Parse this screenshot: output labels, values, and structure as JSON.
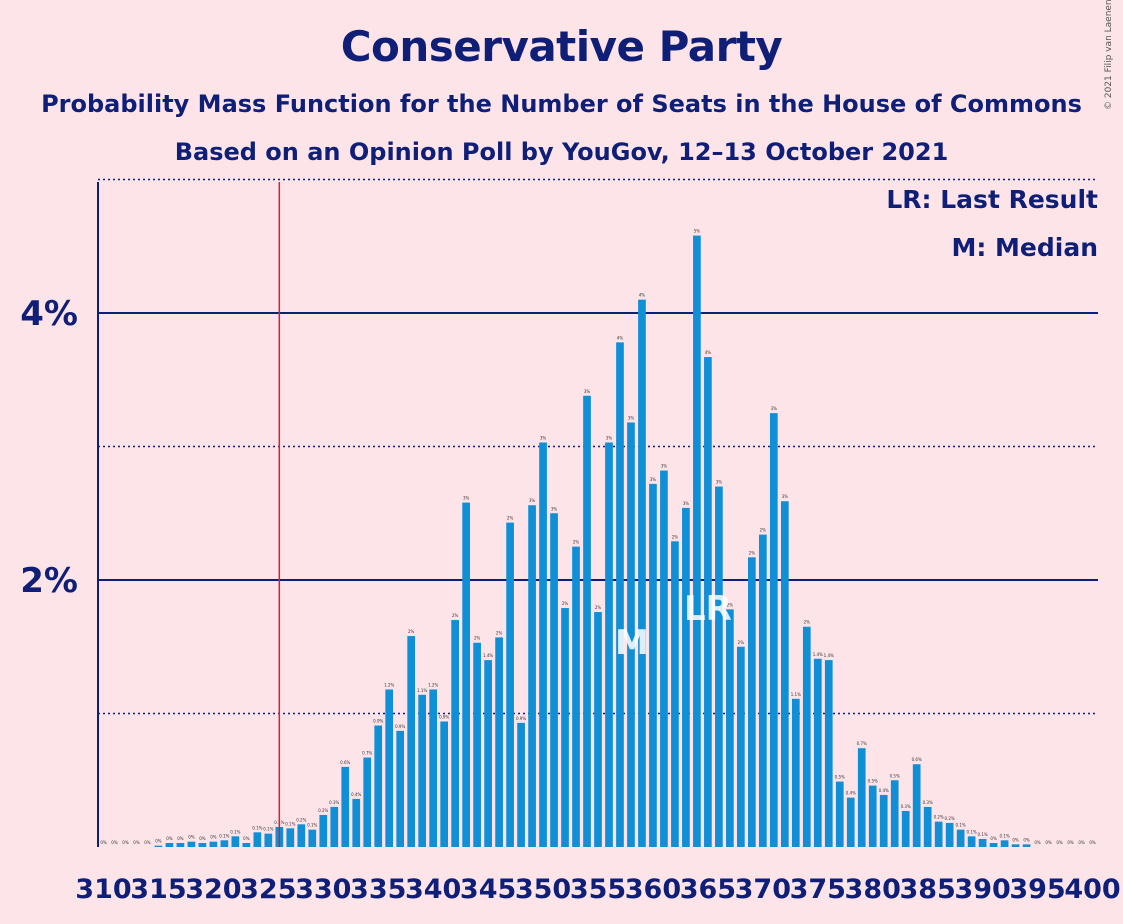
{
  "title": "Conservative Party",
  "subtitle1": "Probability Mass Function for the Number of Seats in the House of Commons",
  "subtitle2": "Based on an Opinion Poll by YouGov, 12–13 October 2021",
  "copyright": "© 2021 Filip van Laenen",
  "legend": {
    "lr": "LR: Last Result",
    "m": "M: Median"
  },
  "colors": {
    "bar": "#0f8fd6",
    "axis": "#0f1f78",
    "last_result_line": "#d0203a",
    "background": "#fde4e8"
  },
  "chart_data": {
    "type": "bar",
    "x": [
      310,
      311,
      312,
      313,
      314,
      315,
      316,
      317,
      318,
      319,
      320,
      321,
      322,
      323,
      324,
      325,
      326,
      327,
      328,
      329,
      330,
      331,
      332,
      333,
      334,
      335,
      336,
      337,
      338,
      339,
      340,
      341,
      342,
      343,
      344,
      345,
      346,
      347,
      348,
      349,
      350,
      351,
      352,
      353,
      354,
      355,
      356,
      357,
      358,
      359,
      360,
      361,
      362,
      363,
      364,
      365,
      366,
      367,
      368,
      369,
      370,
      371,
      372,
      373,
      374,
      375,
      376,
      377,
      378,
      379,
      380,
      381,
      382,
      383,
      384,
      385,
      386,
      387,
      388,
      389,
      390,
      391,
      392,
      393,
      394,
      395,
      396,
      397,
      398,
      399,
      400
    ],
    "values": [
      0,
      0,
      0,
      0,
      0,
      0.01,
      0.03,
      0.03,
      0.04,
      0.03,
      0.04,
      0.05,
      0.08,
      0.03,
      0.11,
      0.1,
      0.15,
      0.14,
      0.17,
      0.13,
      0.24,
      0.3,
      0.6,
      0.36,
      0.67,
      0.91,
      1.18,
      0.87,
      1.58,
      1.14,
      1.18,
      0.94,
      1.7,
      2.58,
      1.53,
      1.4,
      1.57,
      2.43,
      0.93,
      2.56,
      3.03,
      2.5,
      1.79,
      2.25,
      3.38,
      1.76,
      3.03,
      3.78,
      3.18,
      4.1,
      2.72,
      2.82,
      2.29,
      2.54,
      4.58,
      3.67,
      2.7,
      1.78,
      1.5,
      2.17,
      2.34,
      3.25,
      2.59,
      1.11,
      1.65,
      1.41,
      1.4,
      0.49,
      0.37,
      0.74,
      0.46,
      0.39,
      0.5,
      0.27,
      0.62,
      0.3,
      0.19,
      0.18,
      0.13,
      0.08,
      0.06,
      0.03,
      0.05,
      0.02,
      0.02,
      0,
      0,
      0,
      0,
      0,
      0
    ],
    "value_labels": [
      "0%",
      "0%",
      "0%",
      "0%",
      "0%",
      "0%",
      "0%",
      "0%",
      "0%",
      "0%",
      "0%",
      "0.1%",
      "0.1%",
      "0%",
      "0.1%",
      "0.1%",
      "0.1%",
      "0.1%",
      "0.2%",
      "0.1%",
      "0.2%",
      "0.3%",
      "0.6%",
      "0.4%",
      "0.7%",
      "0.9%",
      "1.2%",
      "0.9%",
      "2%",
      "1.1%",
      "1.2%",
      "0.9%",
      "2%",
      "3%",
      "2%",
      "1.4%",
      "2%",
      "2%",
      "0.9%",
      "3%",
      "3%",
      "3%",
      "2%",
      "2%",
      "3%",
      "2%",
      "3%",
      "4%",
      "3%",
      "4%",
      "3%",
      "3%",
      "2%",
      "3%",
      "5%",
      "4%",
      "3%",
      "2%",
      "2%",
      "2%",
      "2%",
      "3%",
      "3%",
      "1.1%",
      "2%",
      "1.4%",
      "1.4%",
      "0.5%",
      "0.4%",
      "0.7%",
      "0.5%",
      "0.4%",
      "0.5%",
      "0.3%",
      "0.6%",
      "0.3%",
      "0.2%",
      "0.2%",
      "0.1%",
      "0.1%",
      "0.1%",
      "0%",
      "0.1%",
      "0%",
      "0%",
      "0%",
      "0%",
      "0%",
      "0%",
      "0%",
      "0%"
    ],
    "xticks": [
      "310",
      "315",
      "320",
      "325",
      "330",
      "335",
      "340",
      "345",
      "350",
      "355",
      "360",
      "365",
      "370",
      "375",
      "380",
      "385",
      "390",
      "395",
      "400"
    ],
    "yticks": [
      "2%",
      "4%"
    ],
    "ylim": [
      0,
      5
    ],
    "last_result": 326,
    "median": 359,
    "median_marker": "M",
    "last_result_marker": "LR",
    "grid": "solid at 2% and 4%, dotted at 1%, 3% and 5%"
  }
}
